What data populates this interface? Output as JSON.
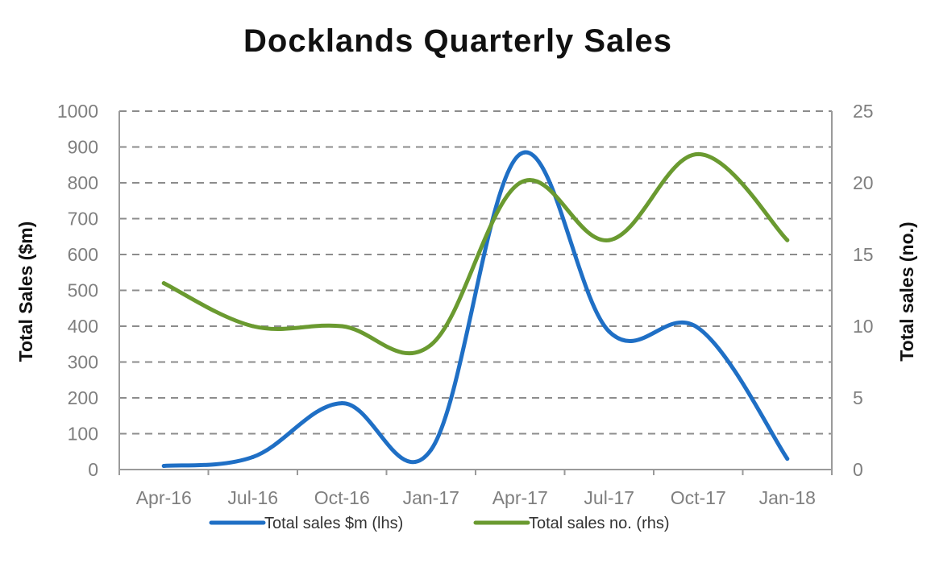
{
  "chart_data": {
    "type": "line",
    "title": "Docklands Quarterly Sales",
    "categories": [
      "Apr-16",
      "Jul-16",
      "Oct-16",
      "Jan-17",
      "Apr-17",
      "Jul-17",
      "Oct-17",
      "Jan-18"
    ],
    "ylabel_left": "Total Sales ($m)",
    "ylabel_right": "Total sales (no.)",
    "ylim_left": [
      0,
      1000
    ],
    "ylim_right": [
      0,
      25
    ],
    "yticks_left": [
      "0",
      "100",
      "200",
      "300",
      "400",
      "500",
      "600",
      "700",
      "800",
      "900",
      "1000"
    ],
    "yticks_right": [
      "0",
      "5",
      "10",
      "15",
      "20",
      "25"
    ],
    "grid": true,
    "legend_position": "bottom",
    "series": [
      {
        "name": "Total sales $m (lhs)",
        "axis": "left",
        "color": "#1f6fc5",
        "values": [
          10,
          35,
          185,
          55,
          880,
          385,
          395,
          30
        ]
      },
      {
        "name": "Total sales no. (rhs)",
        "axis": "right",
        "color": "#6a9a30",
        "values": [
          13,
          10,
          10,
          8.7,
          20,
          16,
          22,
          16
        ]
      }
    ]
  }
}
